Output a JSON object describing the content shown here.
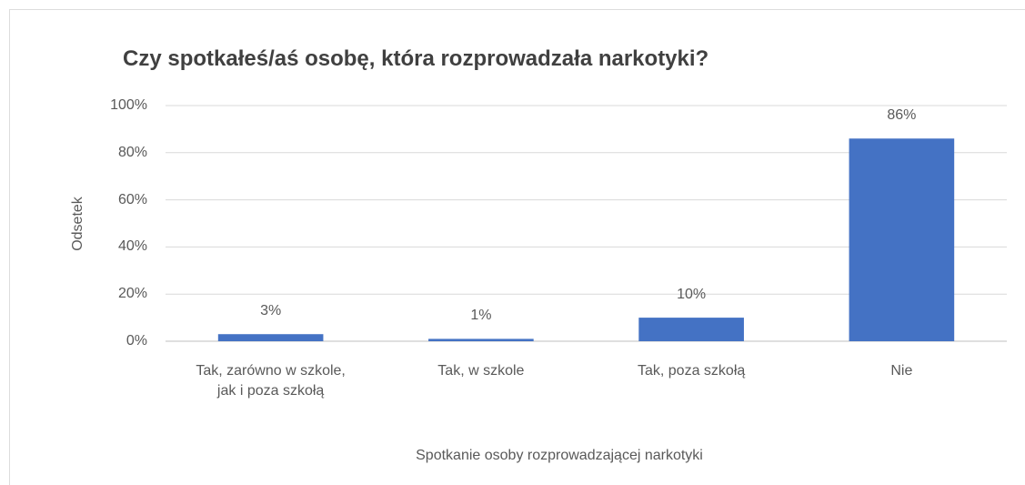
{
  "chart_data": {
    "type": "bar",
    "title": "Czy spotkałeś/aś osobę, która rozprowadzała narkotyki?",
    "x_label": "Spotkanie osoby rozprowadzającej narkotyki",
    "y_label": "Odsetek",
    "categories": [
      "Tak, zarówno w szkole,\njak i poza szkołą",
      "Tak, w szkole",
      "Tak, poza szkołą",
      "Nie"
    ],
    "values": [
      3,
      1,
      10,
      86
    ],
    "value_labels": [
      "3%",
      "1%",
      "10%",
      "86%"
    ],
    "color": "#4472c4",
    "ylim": [
      0,
      100
    ],
    "yticks": [
      {
        "value": 0,
        "label": "0%"
      },
      {
        "value": 20,
        "label": "20%"
      },
      {
        "value": 40,
        "label": "40%"
      },
      {
        "value": 60,
        "label": "60%"
      },
      {
        "value": 80,
        "label": "80%"
      },
      {
        "value": 100,
        "label": "100%"
      }
    ],
    "grid": true
  }
}
